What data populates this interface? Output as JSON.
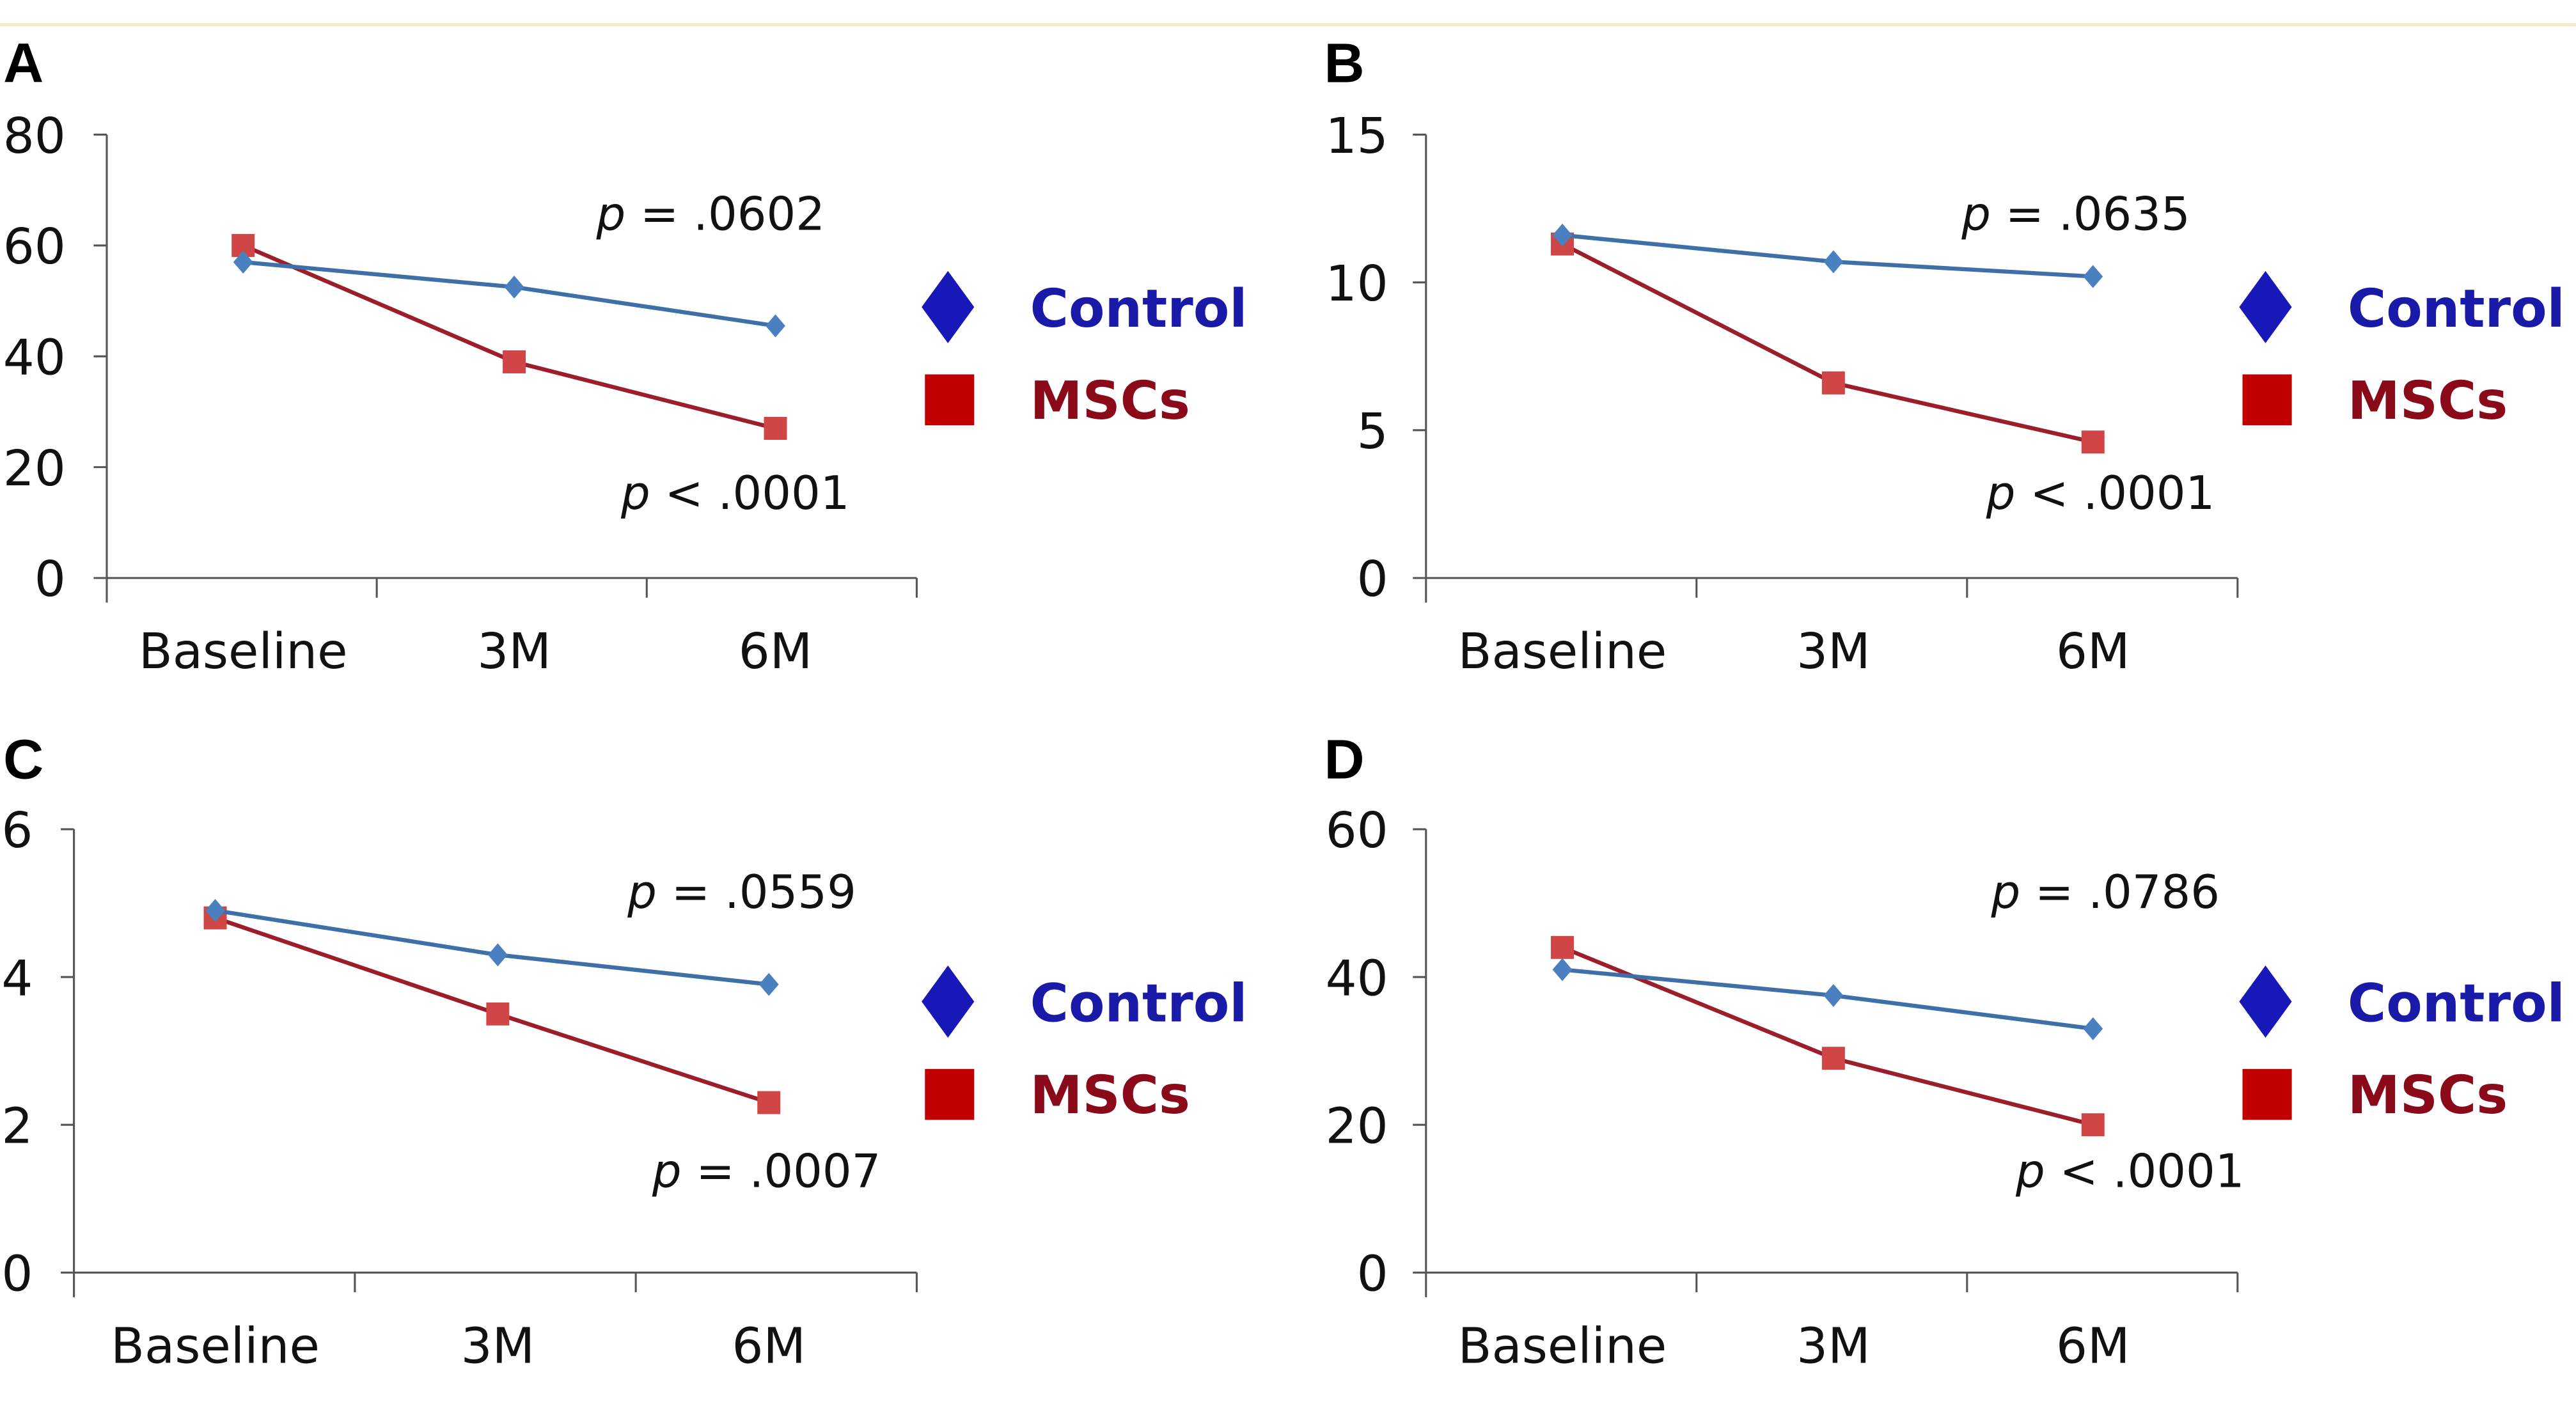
{
  "colors": {
    "control_line": "#3f6fa8",
    "control_marker": "#4a7fc0",
    "control_legend": "#1a1aa8",
    "mscs_line": "#9b1e2a",
    "mscs_marker": "#d04646",
    "mscs_legend": "#8b0a1a",
    "axis": "#555555"
  },
  "chart_data": [
    {
      "type": "line",
      "panel": "A",
      "categories": [
        "Baseline",
        "3M",
        "6M"
      ],
      "ylim": [
        0,
        80
      ],
      "yticks": [
        "0",
        "20",
        "40",
        "60",
        "80"
      ],
      "series": [
        {
          "name": "Control",
          "marker": "diamond",
          "values": [
            57,
            52.5,
            45.5
          ]
        },
        {
          "name": "MSCs",
          "marker": "square",
          "values": [
            60,
            39,
            27
          ]
        }
      ],
      "annotations": {
        "control_p": "= .0602",
        "mscs_p": "< .0001"
      },
      "legend": "right"
    },
    {
      "type": "line",
      "panel": "B",
      "categories": [
        "Baseline",
        "3M",
        "6M"
      ],
      "ylim": [
        0,
        15
      ],
      "yticks": [
        "0",
        "5",
        "10",
        "15"
      ],
      "series": [
        {
          "name": "Control",
          "marker": "diamond",
          "values": [
            11.6,
            10.7,
            10.2
          ]
        },
        {
          "name": "MSCs",
          "marker": "square",
          "values": [
            11.3,
            6.6,
            4.6
          ]
        }
      ],
      "annotations": {
        "control_p": "= .0635",
        "mscs_p": "< .0001"
      },
      "legend": "right"
    },
    {
      "type": "line",
      "panel": "C",
      "categories": [
        "Baseline",
        "3M",
        "6M"
      ],
      "ylim": [
        0,
        6
      ],
      "yticks": [
        "0",
        "2",
        "4",
        "6"
      ],
      "series": [
        {
          "name": "Control",
          "marker": "diamond",
          "values": [
            4.9,
            4.3,
            3.9
          ]
        },
        {
          "name": "MSCs",
          "marker": "square",
          "values": [
            4.8,
            3.5,
            2.3
          ]
        }
      ],
      "annotations": {
        "control_p": "= .0559",
        "mscs_p": "= .0007"
      },
      "legend": "right"
    },
    {
      "type": "line",
      "panel": "D",
      "categories": [
        "Baseline",
        "3M",
        "6M"
      ],
      "ylim": [
        0,
        60
      ],
      "yticks": [
        "0",
        "20",
        "40",
        "60"
      ],
      "series": [
        {
          "name": "Control",
          "marker": "diamond",
          "values": [
            41,
            37.5,
            33
          ]
        },
        {
          "name": "MSCs",
          "marker": "square",
          "values": [
            44,
            29,
            20
          ]
        }
      ],
      "annotations": {
        "control_p": "= .0786",
        "mscs_p": "< .0001"
      },
      "legend": "right"
    }
  ],
  "p_symbol": "p"
}
